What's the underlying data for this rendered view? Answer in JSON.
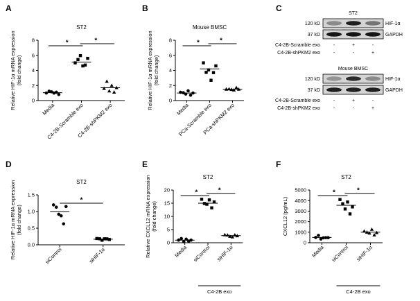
{
  "panels": [
    {
      "letter": "A",
      "title": "ST2",
      "ylabel": [
        "Relative HIF-1α mRNA expression",
        "(fold change)"
      ],
      "ylim": [
        0,
        8
      ],
      "ticks": [
        0,
        2,
        4,
        6,
        8
      ],
      "categories": [
        "Media",
        "C4-2B-Scramble exo",
        "C4-2B-shPKM2 exo"
      ],
      "group_label": "",
      "markers": [
        "circle",
        "square",
        "triangle"
      ],
      "points": [
        [
          1.0,
          1.1,
          1.3,
          0.9,
          1.2,
          0.8
        ],
        [
          5.0,
          5.3,
          6.1,
          4.5,
          4.8,
          5.6
        ],
        [
          1.6,
          2.4,
          1.4,
          1.9,
          1.2,
          1.7
        ]
      ],
      "means": [
        1.05,
        5.1,
        1.7
      ],
      "sig": [
        "*",
        "*"
      ]
    },
    {
      "letter": "B",
      "title": "Mouse BMSC",
      "ylabel": [
        "Relative HIF-1α mRNA expression",
        "(fold change)"
      ],
      "ylim": [
        0,
        8
      ],
      "ticks": [
        0,
        2,
        4,
        6,
        8
      ],
      "categories": [
        "Media",
        "PCa-Scramble exo",
        "PCa-shPKM2 exo"
      ],
      "group_label": "",
      "markers": [
        "circle",
        "square",
        "triangle"
      ],
      "points": [
        [
          1.1,
          0.9,
          1.0,
          1.2,
          0.8,
          1.0
        ],
        [
          5.0,
          3.6,
          4.2,
          2.6,
          3.8,
          4.6
        ],
        [
          1.5,
          1.4,
          1.6,
          1.3,
          1.8,
          1.5
        ]
      ],
      "means": [
        1.0,
        4.2,
        1.5
      ],
      "sig": [
        "*",
        "*"
      ]
    },
    {
      "letter": "D",
      "title": "ST2",
      "ylabel": [
        "Relative HIF-1α mRNA expression",
        "(fold change)"
      ],
      "ylim": [
        0,
        1.5
      ],
      "ticks": [
        0.0,
        0.5,
        1.0,
        1.5
      ],
      "categories": [
        "siControl",
        "siHIF-1α"
      ],
      "group_label": "",
      "markers": [
        "circle",
        "square"
      ],
      "points": [
        [
          1.2,
          1.1,
          0.95,
          0.85,
          0.65,
          1.15
        ],
        [
          0.19,
          0.15,
          0.17,
          0.16,
          0.2,
          0.16
        ]
      ],
      "means": [
        1.0,
        0.17
      ],
      "sig": [
        "*"
      ]
    },
    {
      "letter": "E",
      "title": "ST2",
      "ylabel": [
        "Relative CXCL12 mRNA expression",
        "(fold change)"
      ],
      "ylim": [
        0,
        20
      ],
      "ticks": [
        0,
        5,
        10,
        15,
        20
      ],
      "categories": [
        "Media",
        "siControl",
        "siHIF-1α"
      ],
      "group_label": "C4-2B exo",
      "markers": [
        "circle",
        "square",
        "triangle"
      ],
      "points": [
        [
          1.0,
          1.2,
          0.8,
          1.1,
          0.9,
          1.0
        ],
        [
          16.5,
          14.5,
          15.0,
          16.0,
          13.5,
          15.5
        ],
        [
          3.0,
          2.5,
          2.8,
          1.9,
          3.2,
          2.6
        ]
      ],
      "means": [
        1.0,
        15.0,
        2.7
      ],
      "sig": [
        "*",
        "*"
      ]
    },
    {
      "letter": "F",
      "title": "ST2",
      "ylabel": [
        "CXCL12 (pg/mL)"
      ],
      "ylim": [
        0,
        5000
      ],
      "ticks": [
        0,
        1000,
        2000,
        3000,
        4000,
        5000
      ],
      "categories": [
        "Media",
        "siControl",
        "siHIF-1α"
      ],
      "group_label": "C4-2B exo",
      "markers": [
        "circle",
        "square",
        "triangle"
      ],
      "points": [
        [
          500,
          600,
          450,
          400,
          550,
          480
        ],
        [
          4100,
          3600,
          3300,
          3800,
          2800,
          3400
        ],
        [
          1100,
          900,
          1000,
          1200,
          800,
          950
        ]
      ],
      "means": [
        500,
        3550,
        1000
      ],
      "sig": [
        "*",
        "*"
      ]
    }
  ],
  "blots": {
    "letter": "C",
    "sections": [
      {
        "title": "ST2",
        "rows": [
          {
            "size": "120 kD",
            "protein": "HIF-1α"
          },
          {
            "size": "37 kD",
            "protein": "GAPDH"
          }
        ],
        "conditions": [
          {
            "label": "C4-2B-Scramble exo",
            "signs": [
              "-",
              "+",
              "-"
            ]
          },
          {
            "label": "C4-2B-shPKM2 exo",
            "signs": [
              "-",
              "-",
              "+"
            ]
          }
        ]
      },
      {
        "title": "Mouse BMSC",
        "rows": [
          {
            "size": "120 kD",
            "protein": "HIF-1α"
          },
          {
            "size": "37 kD",
            "protein": "GAPDH"
          }
        ],
        "conditions": [
          {
            "label": "C4-2B-Scramble exo",
            "signs": [
              "-",
              "+",
              "-"
            ]
          },
          {
            "label": "C4-2B-shPKM2 exo",
            "signs": [
              "-",
              "-",
              "+"
            ]
          }
        ]
      }
    ]
  },
  "chart_data": [
    {
      "type": "scatter",
      "panel": "A",
      "title": "ST2",
      "ylabel": "Relative HIF-1α mRNA expression (fold change)",
      "ylim": [
        0,
        8
      ],
      "categories": [
        "Media",
        "C4-2B-Scramble exo",
        "C4-2B-shPKM2 exo"
      ],
      "series": [
        {
          "name": "Media",
          "values": [
            1.0,
            1.1,
            1.3,
            0.9,
            1.2,
            0.8
          ]
        },
        {
          "name": "C4-2B-Scramble exo",
          "values": [
            5.0,
            5.3,
            6.1,
            4.5,
            4.8,
            5.6
          ]
        },
        {
          "name": "C4-2B-shPKM2 exo",
          "values": [
            1.6,
            2.4,
            1.4,
            1.9,
            1.2,
            1.7
          ]
        }
      ],
      "means": [
        1.05,
        5.1,
        1.7
      ]
    },
    {
      "type": "scatter",
      "panel": "B",
      "title": "Mouse BMSC",
      "ylabel": "Relative HIF-1α mRNA expression (fold change)",
      "ylim": [
        0,
        8
      ],
      "categories": [
        "Media",
        "PCa-Scramble exo",
        "PCa-shPKM2 exo"
      ],
      "series": [
        {
          "name": "Media",
          "values": [
            1.1,
            0.9,
            1.0,
            1.2,
            0.8,
            1.0
          ]
        },
        {
          "name": "PCa-Scramble exo",
          "values": [
            5.0,
            3.6,
            4.2,
            2.6,
            3.8,
            4.6
          ]
        },
        {
          "name": "PCa-shPKM2 exo",
          "values": [
            1.5,
            1.4,
            1.6,
            1.3,
            1.8,
            1.5
          ]
        }
      ],
      "means": [
        1.0,
        4.2,
        1.5
      ]
    },
    {
      "type": "scatter",
      "panel": "D",
      "title": "ST2",
      "ylabel": "Relative HIF-1α mRNA expression (fold change)",
      "ylim": [
        0,
        1.5
      ],
      "categories": [
        "siControl",
        "siHIF-1α"
      ],
      "series": [
        {
          "name": "siControl",
          "values": [
            1.2,
            1.1,
            0.95,
            0.85,
            0.65,
            1.15
          ]
        },
        {
          "name": "siHIF-1α",
          "values": [
            0.19,
            0.15,
            0.17,
            0.16,
            0.2,
            0.16
          ]
        }
      ],
      "means": [
        1.0,
        0.17
      ]
    },
    {
      "type": "scatter",
      "panel": "E",
      "title": "ST2",
      "ylabel": "Relative CXCL12 mRNA expression (fold change)",
      "ylim": [
        0,
        20
      ],
      "categories": [
        "Media",
        "siControl",
        "siHIF-1α"
      ],
      "series": [
        {
          "name": "Media",
          "values": [
            1.0,
            1.2,
            0.8,
            1.1,
            0.9,
            1.0
          ]
        },
        {
          "name": "siControl",
          "values": [
            16.5,
            14.5,
            15.0,
            16.0,
            13.5,
            15.5
          ]
        },
        {
          "name": "siHIF-1α",
          "values": [
            3.0,
            2.5,
            2.8,
            1.9,
            3.2,
            2.6
          ]
        }
      ],
      "means": [
        1.0,
        15.0,
        2.7
      ]
    },
    {
      "type": "scatter",
      "panel": "F",
      "title": "ST2",
      "ylabel": "CXCL12 (pg/mL)",
      "ylim": [
        0,
        5000
      ],
      "categories": [
        "Media",
        "siControl",
        "siHIF-1α"
      ],
      "series": [
        {
          "name": "Media",
          "values": [
            500,
            600,
            450,
            400,
            550,
            480
          ]
        },
        {
          "name": "siControl",
          "values": [
            4100,
            3600,
            3300,
            3800,
            2800,
            3400
          ]
        },
        {
          "name": "siHIF-1α",
          "values": [
            1100,
            900,
            1000,
            1200,
            800,
            950
          ]
        }
      ],
      "means": [
        500,
        3550,
        1000
      ]
    }
  ]
}
